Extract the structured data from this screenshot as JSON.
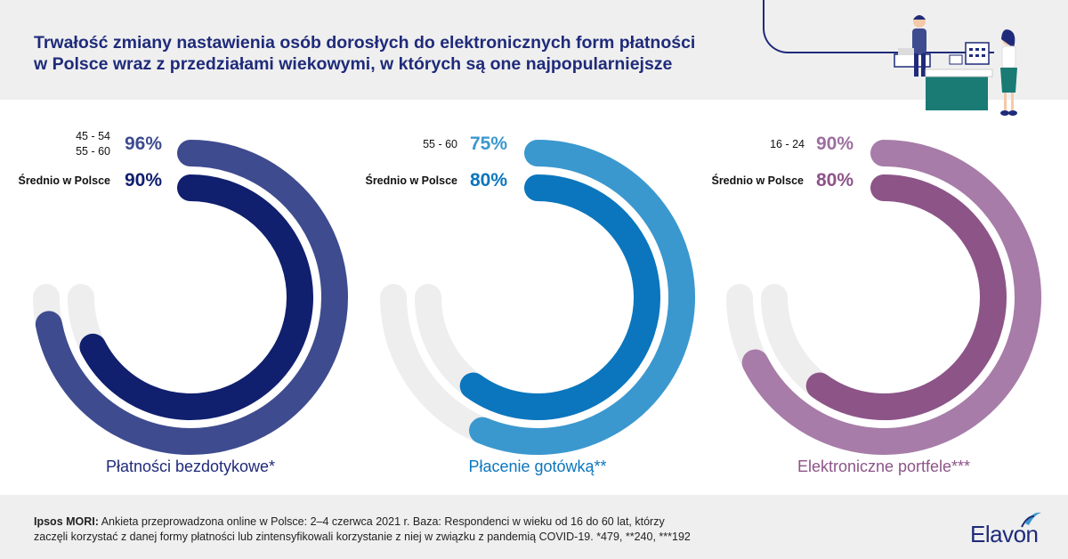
{
  "header": {
    "title_line1": "Trwałość zmiany nastawienia osób dorosłych do elektronicznych form płatności",
    "title_line2": "w Polsce wraz z przedziałami wiekowymi, w których są one najpopularniejsze"
  },
  "chart_data": [
    {
      "type": "radial-bar",
      "category": "Płatności bezdotykowe*",
      "series": [
        {
          "name": "45 - 54 / 55 - 60",
          "age_labels": [
            "45 - 54",
            "55 - 60"
          ],
          "value": 96,
          "value_label": "96%"
        },
        {
          "name": "Średnio w Polsce",
          "value": 90,
          "value_label": "90%"
        }
      ],
      "colors": {
        "outer": "#3e4b8f",
        "inner": "#101f6e",
        "accent": "#3e4b8f",
        "track": "#eeeeee"
      }
    },
    {
      "type": "radial-bar",
      "category": "Płacenie gotówką**",
      "series": [
        {
          "name": "55 - 60",
          "age_labels": [
            "55 - 60"
          ],
          "value": 75,
          "value_label": "75%"
        },
        {
          "name": "Średnio w Polsce",
          "value": 80,
          "value_label": "80%"
        }
      ],
      "colors": {
        "outer": "#3a98cf",
        "inner": "#0b76bd",
        "accent": "#3a98cf",
        "track": "#eeeeee"
      }
    },
    {
      "type": "radial-bar",
      "category": "Elektroniczne portfele***",
      "series": [
        {
          "name": "16 - 24",
          "age_labels": [
            "16 - 24"
          ],
          "value": 90,
          "value_label": "90%"
        },
        {
          "name": "Średnio w Polsce",
          "value": 80,
          "value_label": "80%"
        }
      ],
      "colors": {
        "outer": "#a77ca8",
        "inner": "#8d5488",
        "accent": "#9c6fa0",
        "track": "#eeeeee"
      }
    }
  ],
  "footer": {
    "source_bold": "Ipsos MORI:",
    "text_line1": "Ankieta przeprowadzona online w Polsce: 2–4 czerwca 2021 r. Baza: Respondenci w wieku od 16 do 60 lat, którzy",
    "text_line2": "zaczęli korzystać z danej formy płatności lub zintensyfikowali korzystanie z niej w związku z pandemią COVID-19. *479, **240, ***192"
  },
  "brand": {
    "name": "Elavon",
    "color": "#1f2b7a"
  }
}
